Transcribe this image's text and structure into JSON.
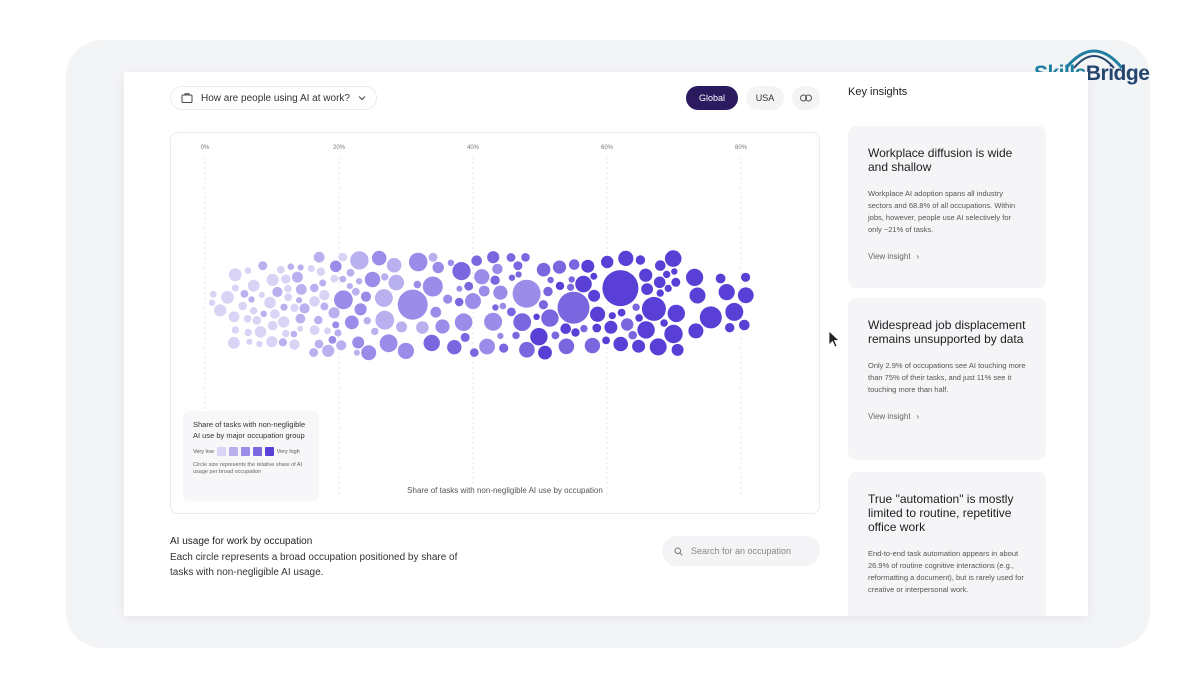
{
  "brand": {
    "name_part1": "Skills",
    "name_part2": "Bridge"
  },
  "header": {
    "question": "How are people using AI at work?",
    "region_options": [
      {
        "label": "Global",
        "selected": true
      },
      {
        "label": "USA",
        "selected": false
      }
    ],
    "link_icon": "link-icon"
  },
  "chart_data": {
    "type": "scatter",
    "variant": "beeswarm bubble chart",
    "x_ticks": [
      "0%",
      "20%",
      "40%",
      "60%",
      "80%"
    ],
    "xlabel": "Share of tasks with non-negligible AI use by occupation",
    "xlim": [
      0,
      90
    ],
    "color_scale": [
      "#d9d4f5",
      "#b9b0ef",
      "#9a8ce8",
      "#7a66df",
      "#5a3fd6"
    ],
    "legend": {
      "title": "Share of tasks with non-negligible AI use by major occupation group",
      "low_label": "Very low",
      "high_label": "Very high",
      "note": "Circle size represents the relative share of AI usage per broad occupation"
    }
  },
  "description": {
    "title": "AI usage for work by occupation",
    "body": "Each circle represents a broad occupation positioned by share of tasks with non-negligible AI usage."
  },
  "search": {
    "placeholder": "Search for an occupation"
  },
  "insights": {
    "title": "Key insights",
    "cards": [
      {
        "heading": "Workplace diffusion is wide and shallow",
        "body": "Workplace AI adoption spans all industry sectors and 68.8% of all occupations. Within jobs, however, people use AI selectively for only ~21% of tasks.",
        "link": "View insight"
      },
      {
        "heading": "Widespread job displacement remains unsupported by data",
        "body": "Only 2.9% of occupations see AI touching more than 75% of their tasks, and just 11% see it touching more than half.",
        "link": "View insight"
      },
      {
        "heading": "True \"automation\" is mostly limited to routine, repetitive office work",
        "body": "End-to-end task automation appears in about 26.9% of routine cognitive interactions (e.g., reformatting a document), but is rarely used for creative or interpersonal work.",
        "link": ""
      }
    ]
  }
}
